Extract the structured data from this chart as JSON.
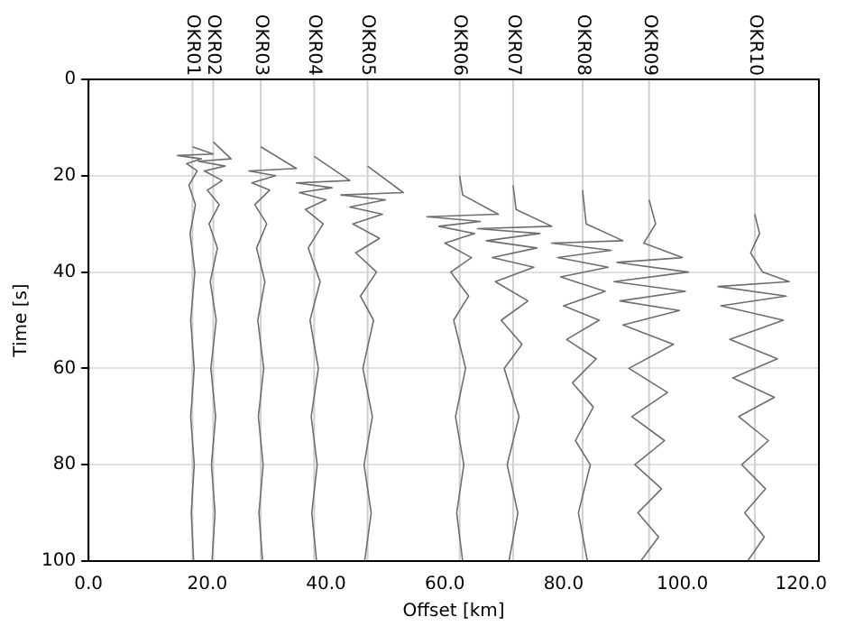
{
  "chart_data": {
    "type": "line",
    "xlabel": "Offset [km]",
    "ylabel": "Time [s]",
    "xlim": [
      0,
      123
    ],
    "xticks": [
      {
        "value": 0,
        "label": "0.0"
      },
      {
        "value": 20,
        "label": "20.0"
      },
      {
        "value": 40,
        "label": "40.0"
      },
      {
        "value": 60,
        "label": "60.0"
      },
      {
        "value": 80,
        "label": "80.0"
      },
      {
        "value": 100,
        "label": "100.0"
      },
      {
        "value": 120,
        "label": "120.0"
      }
    ],
    "ref_lines": [
      {
        "axis": "x",
        "value": 17.5,
        "label": "OKR01",
        "color": "#d0d0d0"
      },
      {
        "axis": "x",
        "value": 21,
        "label": "OKR02",
        "color": "#d0d0d0"
      },
      {
        "axis": "x",
        "value": 29,
        "label": "OKR03",
        "color": "#d0d0d0"
      },
      {
        "axis": "x",
        "value": 38,
        "label": "OKR04",
        "color": "#d0d0d0"
      },
      {
        "axis": "x",
        "value": 47,
        "label": "OKR05",
        "color": "#d0d0d0"
      },
      {
        "axis": "x",
        "value": 62.5,
        "label": "OKR06",
        "color": "#d0d0d0"
      },
      {
        "axis": "x",
        "value": 71.5,
        "label": "OKR07",
        "color": "#d0d0d0"
      },
      {
        "axis": "x",
        "value": 83.2,
        "label": "OKR08",
        "color": "#d0d0d0"
      },
      {
        "axis": "x",
        "value": 94.4,
        "label": "OKR09",
        "color": "#d0d0d0"
      },
      {
        "axis": "x",
        "value": 112.2,
        "label": "OKR10",
        "color": "#d0d0d0"
      }
    ],
    "ylim": [
      100,
      0
    ],
    "yticks": [
      0,
      20,
      40,
      60,
      80,
      100
    ],
    "grid": "y",
    "legend": false,
    "marker": "none",
    "line_style": "solid",
    "series": [
      {
        "color": "#6e6e6e",
        "x": [
          17.5,
          21,
          15,
          19,
          16.5,
          18.3,
          16.9,
          18,
          17.1,
          17.9,
          17.2,
          17.8,
          17.2,
          17.8,
          17.3,
          17.7
        ],
        "values": [
          14,
          15.5,
          15.8,
          16.5,
          17.5,
          19,
          22,
          26,
          32,
          40,
          50,
          60,
          70,
          80,
          90,
          100
        ]
      },
      {
        "color": "#6e6e6e",
        "x": [
          21,
          24,
          18.5,
          23,
          19.5,
          22.5,
          20,
          22,
          20.3,
          21.7,
          20.5,
          21.5,
          20.6,
          21.4,
          20.7,
          21.3,
          20.8
        ],
        "values": [
          13,
          16.5,
          17,
          18,
          19,
          21,
          23,
          26,
          30,
          35,
          42,
          50,
          60,
          70,
          80,
          90,
          100
        ]
      },
      {
        "color": "#6e6e6e",
        "x": [
          29,
          35,
          27,
          31.5,
          27.5,
          30.5,
          28,
          30,
          28.3,
          29.7,
          28.5,
          29.5,
          28.6,
          29.4,
          28.7,
          29.3
        ],
        "values": [
          14,
          18.5,
          19,
          20,
          21.5,
          23,
          26,
          30,
          35,
          42,
          50,
          60,
          70,
          80,
          90,
          100
        ]
      },
      {
        "color": "#6e6e6e",
        "x": [
          38,
          44,
          35,
          41,
          35.5,
          40,
          36.5,
          39.5,
          37,
          39,
          37.3,
          38.7,
          37.5,
          38.5,
          37.6,
          38.4
        ],
        "values": [
          16,
          21,
          21.5,
          22.5,
          23.5,
          25,
          27,
          30,
          35,
          42,
          50,
          60,
          70,
          80,
          90,
          100
        ]
      },
      {
        "color": "#6e6e6e",
        "x": [
          47,
          53,
          42.5,
          50,
          44,
          49.5,
          44.5,
          49,
          45,
          48.5,
          45.8,
          48,
          46.2,
          47.8,
          46.4,
          47.6,
          46.5
        ],
        "values": [
          18,
          23.5,
          24,
          25,
          26.5,
          28,
          30,
          33,
          36,
          40,
          45,
          50,
          60,
          70,
          80,
          90,
          100
        ]
      },
      {
        "color": "#6e6e6e",
        "x": [
          62.5,
          63,
          69,
          57,
          66,
          59,
          65,
          60,
          64.5,
          61,
          64,
          61.5,
          63.5,
          61.8,
          63.2,
          62,
          63
        ],
        "values": [
          20,
          24,
          28,
          28.5,
          29.5,
          30.5,
          32,
          34,
          37,
          40,
          45,
          50,
          60,
          70,
          80,
          90,
          100
        ]
      },
      {
        "color": "#6e6e6e",
        "x": [
          71.5,
          72,
          78,
          65.5,
          76,
          67,
          75.5,
          68,
          75,
          68.5,
          74,
          69.5,
          73,
          70,
          72.5,
          70.5,
          72.3,
          70.8
        ],
        "values": [
          22,
          27,
          30.5,
          31,
          32,
          33.5,
          35,
          37,
          39,
          42,
          46,
          50,
          55,
          60,
          70,
          80,
          90,
          100
        ]
      },
      {
        "color": "#6e6e6e",
        "x": [
          83.2,
          83.8,
          90,
          78,
          88,
          79,
          87.5,
          79.5,
          87,
          80,
          86,
          80.5,
          85.5,
          81.5,
          85,
          82,
          84.5,
          82.5,
          84
        ],
        "values": [
          23,
          30,
          33.5,
          34,
          35.5,
          37,
          39,
          41,
          44,
          47,
          50,
          54,
          58,
          63,
          68,
          75,
          80,
          90,
          100
        ]
      },
      {
        "color": "#6e6e6e",
        "x": [
          94.4,
          95.5,
          93.5,
          100,
          89,
          101,
          88.5,
          100.5,
          89.5,
          99.5,
          90,
          98.5,
          91,
          97.5,
          91.5,
          97,
          92,
          96.5,
          92.5,
          96,
          93
        ],
        "values": [
          25,
          30,
          34,
          37,
          38,
          40,
          42,
          44,
          46,
          48,
          51,
          55,
          60,
          65,
          70,
          75,
          80,
          85,
          90,
          95,
          100
        ]
      },
      {
        "color": "#6e6e6e",
        "x": [
          112.2,
          113,
          111.5,
          113.5,
          118,
          106,
          117.5,
          106.5,
          117,
          108,
          116,
          108.5,
          115.5,
          109.5,
          114.5,
          110,
          114,
          110.5,
          113.8,
          111
        ],
        "values": [
          28,
          32,
          36,
          40,
          42,
          43,
          45,
          47,
          50,
          54,
          58,
          62,
          66,
          70,
          75,
          80,
          85,
          90,
          95,
          100
        ]
      }
    ]
  }
}
